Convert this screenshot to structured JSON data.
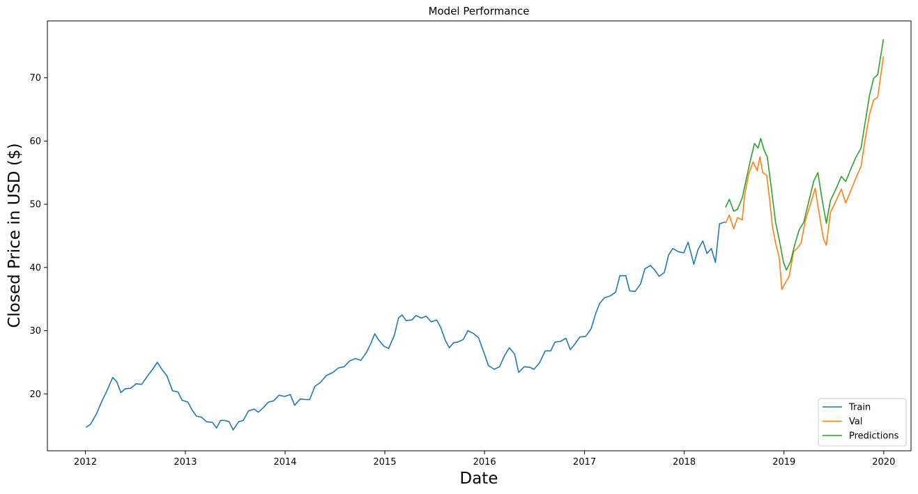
{
  "chart_data": {
    "type": "line",
    "title": "Model Performance",
    "xlabel": "Date",
    "ylabel": "Closed Price in USD ($)",
    "xlim": [
      "2011-08-15",
      "2020-04-10"
    ],
    "ylim": [
      11,
      79
    ],
    "xticks": [
      "2012",
      "2013",
      "2014",
      "2015",
      "2016",
      "2017",
      "2018",
      "2019",
      "2020"
    ],
    "yticks": [
      20,
      30,
      40,
      50,
      60,
      70
    ],
    "grid": false,
    "legend_position": "lower-right",
    "series": [
      {
        "name": "Train",
        "color": "#1f77b4",
        "points": [
          [
            "2012-01-03",
            14.7
          ],
          [
            "2012-01-20",
            15.2
          ],
          [
            "2012-02-10",
            16.8
          ],
          [
            "2012-03-01",
            18.8
          ],
          [
            "2012-03-20",
            20.5
          ],
          [
            "2012-04-10",
            22.6
          ],
          [
            "2012-04-25",
            21.9
          ],
          [
            "2012-05-10",
            20.2
          ],
          [
            "2012-05-25",
            20.8
          ],
          [
            "2012-06-15",
            20.9
          ],
          [
            "2012-07-05",
            21.6
          ],
          [
            "2012-07-25",
            21.5
          ],
          [
            "2012-08-15",
            22.8
          ],
          [
            "2012-09-05",
            24.0
          ],
          [
            "2012-09-20",
            25.0
          ],
          [
            "2012-10-10",
            23.7
          ],
          [
            "2012-10-25",
            22.9
          ],
          [
            "2012-11-15",
            20.5
          ],
          [
            "2012-12-05",
            20.3
          ],
          [
            "2012-12-20",
            19.0
          ],
          [
            "2013-01-10",
            18.7
          ],
          [
            "2013-01-25",
            17.5
          ],
          [
            "2013-02-10",
            16.5
          ],
          [
            "2013-03-01",
            16.3
          ],
          [
            "2013-03-20",
            15.6
          ],
          [
            "2013-04-10",
            15.5
          ],
          [
            "2013-04-25",
            14.6
          ],
          [
            "2013-05-10",
            15.8
          ],
          [
            "2013-05-25",
            15.8
          ],
          [
            "2013-06-10",
            15.6
          ],
          [
            "2013-06-25",
            14.3
          ],
          [
            "2013-07-15",
            15.6
          ],
          [
            "2013-08-01",
            15.8
          ],
          [
            "2013-08-20",
            17.3
          ],
          [
            "2013-09-10",
            17.6
          ],
          [
            "2013-09-25",
            17.1
          ],
          [
            "2013-10-15",
            17.9
          ],
          [
            "2013-11-01",
            18.7
          ],
          [
            "2013-11-20",
            18.9
          ],
          [
            "2013-12-10",
            19.8
          ],
          [
            "2013-12-30",
            19.6
          ],
          [
            "2014-01-20",
            19.9
          ],
          [
            "2014-02-05",
            18.2
          ],
          [
            "2014-02-25",
            19.2
          ],
          [
            "2014-03-15",
            19.1
          ],
          [
            "2014-04-01",
            19.1
          ],
          [
            "2014-04-20",
            21.2
          ],
          [
            "2014-05-10",
            21.8
          ],
          [
            "2014-06-01",
            22.9
          ],
          [
            "2014-06-25",
            23.4
          ],
          [
            "2014-07-15",
            24.1
          ],
          [
            "2014-08-05",
            24.3
          ],
          [
            "2014-08-25",
            25.2
          ],
          [
            "2014-09-15",
            25.6
          ],
          [
            "2014-10-05",
            25.3
          ],
          [
            "2014-10-25",
            26.5
          ],
          [
            "2014-11-10",
            27.9
          ],
          [
            "2014-11-25",
            29.5
          ],
          [
            "2014-12-10",
            28.5
          ],
          [
            "2014-12-30",
            27.5
          ],
          [
            "2015-01-15",
            27.2
          ],
          [
            "2015-02-05",
            29.3
          ],
          [
            "2015-02-20",
            32.0
          ],
          [
            "2015-03-05",
            32.5
          ],
          [
            "2015-03-20",
            31.6
          ],
          [
            "2015-04-10",
            31.7
          ],
          [
            "2015-04-25",
            32.4
          ],
          [
            "2015-05-15",
            32.0
          ],
          [
            "2015-06-01",
            32.3
          ],
          [
            "2015-06-20",
            31.4
          ],
          [
            "2015-07-10",
            31.7
          ],
          [
            "2015-07-25",
            30.5
          ],
          [
            "2015-08-10",
            28.5
          ],
          [
            "2015-08-25",
            27.3
          ],
          [
            "2015-09-10",
            28.1
          ],
          [
            "2015-09-25",
            28.2
          ],
          [
            "2015-10-15",
            28.6
          ],
          [
            "2015-11-01",
            30.0
          ],
          [
            "2015-11-20",
            29.6
          ],
          [
            "2015-12-10",
            28.9
          ],
          [
            "2015-12-30",
            26.5
          ],
          [
            "2016-01-15",
            24.5
          ],
          [
            "2016-02-05",
            23.9
          ],
          [
            "2016-02-25",
            24.3
          ],
          [
            "2016-03-15",
            26.1
          ],
          [
            "2016-04-01",
            27.3
          ],
          [
            "2016-04-20",
            26.3
          ],
          [
            "2016-05-05",
            23.4
          ],
          [
            "2016-05-25",
            24.3
          ],
          [
            "2016-06-15",
            24.2
          ],
          [
            "2016-06-30",
            23.9
          ],
          [
            "2016-07-20",
            24.9
          ],
          [
            "2016-08-10",
            26.8
          ],
          [
            "2016-08-30",
            26.8
          ],
          [
            "2016-09-15",
            28.2
          ],
          [
            "2016-10-05",
            28.3
          ],
          [
            "2016-10-25",
            28.8
          ],
          [
            "2016-11-10",
            27.0
          ],
          [
            "2016-11-25",
            27.8
          ],
          [
            "2016-12-15",
            29.0
          ],
          [
            "2017-01-05",
            29.1
          ],
          [
            "2017-01-25",
            30.3
          ],
          [
            "2017-02-10",
            32.6
          ],
          [
            "2017-02-25",
            34.3
          ],
          [
            "2017-03-15",
            35.2
          ],
          [
            "2017-04-05",
            35.5
          ],
          [
            "2017-04-25",
            36.1
          ],
          [
            "2017-05-10",
            38.7
          ],
          [
            "2017-06-01",
            38.7
          ],
          [
            "2017-06-15",
            36.3
          ],
          [
            "2017-07-05",
            36.2
          ],
          [
            "2017-07-25",
            37.4
          ],
          [
            "2017-08-10",
            39.8
          ],
          [
            "2017-08-30",
            40.3
          ],
          [
            "2017-09-15",
            39.6
          ],
          [
            "2017-10-01",
            38.6
          ],
          [
            "2017-10-20",
            39.2
          ],
          [
            "2017-11-05",
            42.0
          ],
          [
            "2017-11-20",
            43.0
          ],
          [
            "2017-12-10",
            42.5
          ],
          [
            "2017-12-30",
            42.3
          ],
          [
            "2018-01-15",
            44.0
          ],
          [
            "2018-02-05",
            40.5
          ],
          [
            "2018-02-20",
            42.8
          ],
          [
            "2018-03-10",
            44.2
          ],
          [
            "2018-03-25",
            42.2
          ],
          [
            "2018-04-10",
            43.0
          ],
          [
            "2018-04-25",
            40.8
          ],
          [
            "2018-05-10",
            46.9
          ],
          [
            "2018-05-31",
            47.2
          ]
        ]
      },
      {
        "name": "Val",
        "color": "#ff7f0e",
        "points": [
          [
            "2018-06-01",
            47.0
          ],
          [
            "2018-06-15",
            48.3
          ],
          [
            "2018-07-01",
            46.1
          ],
          [
            "2018-07-15",
            47.9
          ],
          [
            "2018-08-01",
            47.5
          ],
          [
            "2018-08-10",
            51.5
          ],
          [
            "2018-08-25",
            54.8
          ],
          [
            "2018-09-10",
            56.7
          ],
          [
            "2018-09-25",
            55.3
          ],
          [
            "2018-10-05",
            57.5
          ],
          [
            "2018-10-15",
            55.0
          ],
          [
            "2018-10-30",
            54.6
          ],
          [
            "2018-11-10",
            50.5
          ],
          [
            "2018-11-20",
            46.4
          ],
          [
            "2018-12-01",
            43.9
          ],
          [
            "2018-12-15",
            41.5
          ],
          [
            "2018-12-24",
            36.5
          ],
          [
            "2019-01-05",
            37.5
          ],
          [
            "2019-01-20",
            38.6
          ],
          [
            "2019-02-05",
            42.5
          ],
          [
            "2019-02-20",
            43.1
          ],
          [
            "2019-03-05",
            43.9
          ],
          [
            "2019-03-20",
            47.4
          ],
          [
            "2019-04-05",
            49.6
          ],
          [
            "2019-04-25",
            52.5
          ],
          [
            "2019-05-10",
            48.5
          ],
          [
            "2019-05-25",
            44.6
          ],
          [
            "2019-06-05",
            43.5
          ],
          [
            "2019-06-20",
            48.7
          ],
          [
            "2019-07-10",
            50.5
          ],
          [
            "2019-07-30",
            52.4
          ],
          [
            "2019-08-15",
            50.2
          ],
          [
            "2019-09-01",
            52.0
          ],
          [
            "2019-09-20",
            54.0
          ],
          [
            "2019-10-10",
            56.0
          ],
          [
            "2019-10-25",
            60.2
          ],
          [
            "2019-11-10",
            64.2
          ],
          [
            "2019-11-25",
            66.5
          ],
          [
            "2019-12-10",
            66.9
          ],
          [
            "2019-12-31",
            73.4
          ]
        ]
      },
      {
        "name": "Predictions",
        "color": "#2ca02c",
        "points": [
          [
            "2018-06-01",
            49.5
          ],
          [
            "2018-06-15",
            50.8
          ],
          [
            "2018-07-01",
            48.9
          ],
          [
            "2018-07-15",
            49.2
          ],
          [
            "2018-08-01",
            51.0
          ],
          [
            "2018-08-15",
            53.8
          ],
          [
            "2018-09-01",
            57.1
          ],
          [
            "2018-09-15",
            59.6
          ],
          [
            "2018-09-28",
            58.9
          ],
          [
            "2018-10-08",
            60.4
          ],
          [
            "2018-10-20",
            58.6
          ],
          [
            "2018-11-01",
            57.5
          ],
          [
            "2018-11-15",
            52.8
          ],
          [
            "2018-12-01",
            47.2
          ],
          [
            "2018-12-15",
            44.3
          ],
          [
            "2018-12-30",
            40.8
          ],
          [
            "2019-01-10",
            39.6
          ],
          [
            "2019-01-25",
            40.9
          ],
          [
            "2019-02-10",
            43.7
          ],
          [
            "2019-02-25",
            45.9
          ],
          [
            "2019-03-15",
            47.2
          ],
          [
            "2019-04-01",
            50.3
          ],
          [
            "2019-04-20",
            53.7
          ],
          [
            "2019-05-05",
            55.0
          ],
          [
            "2019-05-20",
            50.9
          ],
          [
            "2019-06-05",
            47.0
          ],
          [
            "2019-06-20",
            50.6
          ],
          [
            "2019-07-10",
            52.4
          ],
          [
            "2019-07-30",
            54.4
          ],
          [
            "2019-08-15",
            53.6
          ],
          [
            "2019-09-01",
            55.4
          ],
          [
            "2019-09-20",
            57.3
          ],
          [
            "2019-10-10",
            58.9
          ],
          [
            "2019-10-25",
            62.9
          ],
          [
            "2019-11-10",
            67.2
          ],
          [
            "2019-11-25",
            69.9
          ],
          [
            "2019-12-10",
            70.5
          ],
          [
            "2019-12-31",
            76.1
          ]
        ]
      }
    ]
  }
}
